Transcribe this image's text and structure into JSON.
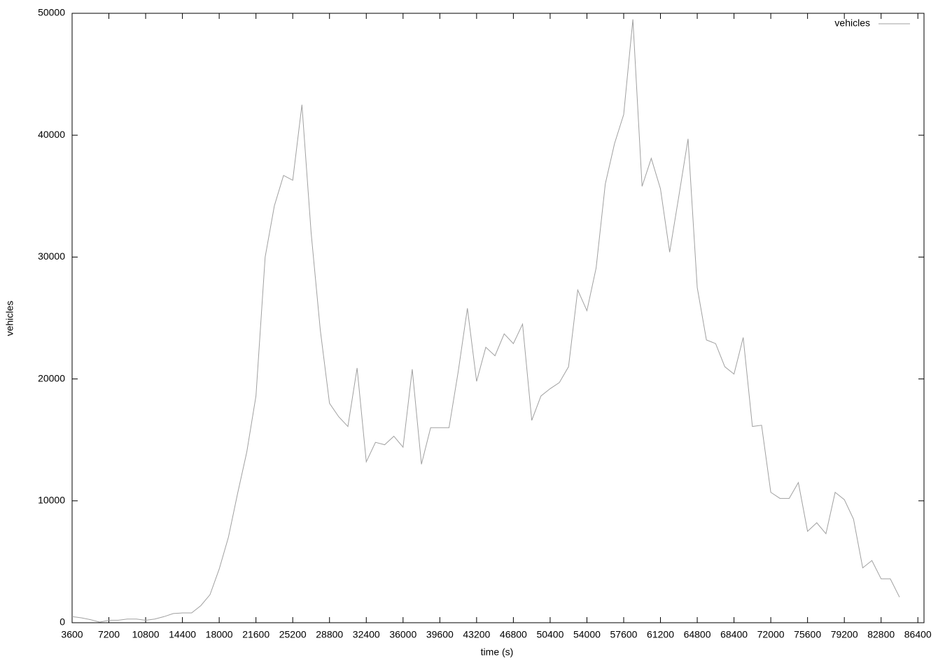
{
  "chart_data": {
    "type": "line",
    "x_label": "time (s)",
    "y_label": "vehicles",
    "x": [
      3600,
      4500,
      5400,
      6300,
      7200,
      8100,
      9000,
      9900,
      10800,
      11700,
      12600,
      13500,
      14400,
      15300,
      16200,
      17100,
      18000,
      18900,
      19800,
      20700,
      21600,
      22500,
      23400,
      24300,
      25200,
      26100,
      27000,
      27900,
      28800,
      29700,
      30600,
      31500,
      32400,
      33300,
      34200,
      35100,
      36000,
      36900,
      37800,
      38700,
      39600,
      40500,
      41400,
      42300,
      43200,
      44100,
      45000,
      45900,
      46800,
      47700,
      48600,
      49500,
      50400,
      51300,
      52200,
      53100,
      54000,
      54900,
      55800,
      56700,
      57600,
      58500,
      59400,
      60300,
      61200,
      62100,
      63000,
      63900,
      64800,
      65700,
      66600,
      67500,
      68400,
      69300,
      70200,
      71100,
      72000,
      72900,
      73800,
      74700,
      75600,
      76500,
      77400,
      78300,
      79200,
      80100,
      81000,
      81900,
      82800,
      83700,
      84600
    ],
    "series": [
      {
        "name": "vehicles",
        "color": "#a0a0a0",
        "values": [
          500,
          400,
          250,
          50,
          200,
          200,
          300,
          300,
          200,
          300,
          500,
          750,
          800,
          800,
          1400,
          2300,
          4400,
          7000,
          10600,
          14000,
          18600,
          30000,
          34200,
          36700,
          36300,
          42500,
          32000,
          24000,
          18000,
          16900,
          16100,
          20900,
          13200,
          14800,
          14600,
          15300,
          14400,
          20800,
          13000,
          16000,
          16000,
          16000,
          20600,
          25800,
          19800,
          22600,
          21900,
          23700,
          22900,
          24500,
          16600,
          18600,
          19200,
          19700,
          21000,
          27300,
          25600,
          29100,
          36000,
          39300,
          41700,
          49500,
          35800,
          38100,
          35600,
          30400,
          35000,
          39700,
          27500,
          23200,
          22900,
          21000,
          20400,
          23400,
          16100,
          16200,
          10700,
          10200,
          10200,
          11500,
          7500,
          8200,
          7300,
          10700,
          10100,
          8500,
          4500,
          5100,
          3600,
          3600,
          2100
        ]
      }
    ],
    "xlim": [
      3600,
      87000
    ],
    "xticks": [
      3600,
      7200,
      10800,
      14400,
      18000,
      21600,
      25200,
      28800,
      32400,
      36000,
      39600,
      43200,
      46800,
      50400,
      54000,
      57600,
      61200,
      64800,
      68400,
      72000,
      75600,
      79200,
      82800,
      86400
    ],
    "ylim": [
      0,
      50000
    ],
    "yticks": [
      0,
      10000,
      20000,
      30000,
      40000,
      50000
    ],
    "legend": "top-right"
  }
}
